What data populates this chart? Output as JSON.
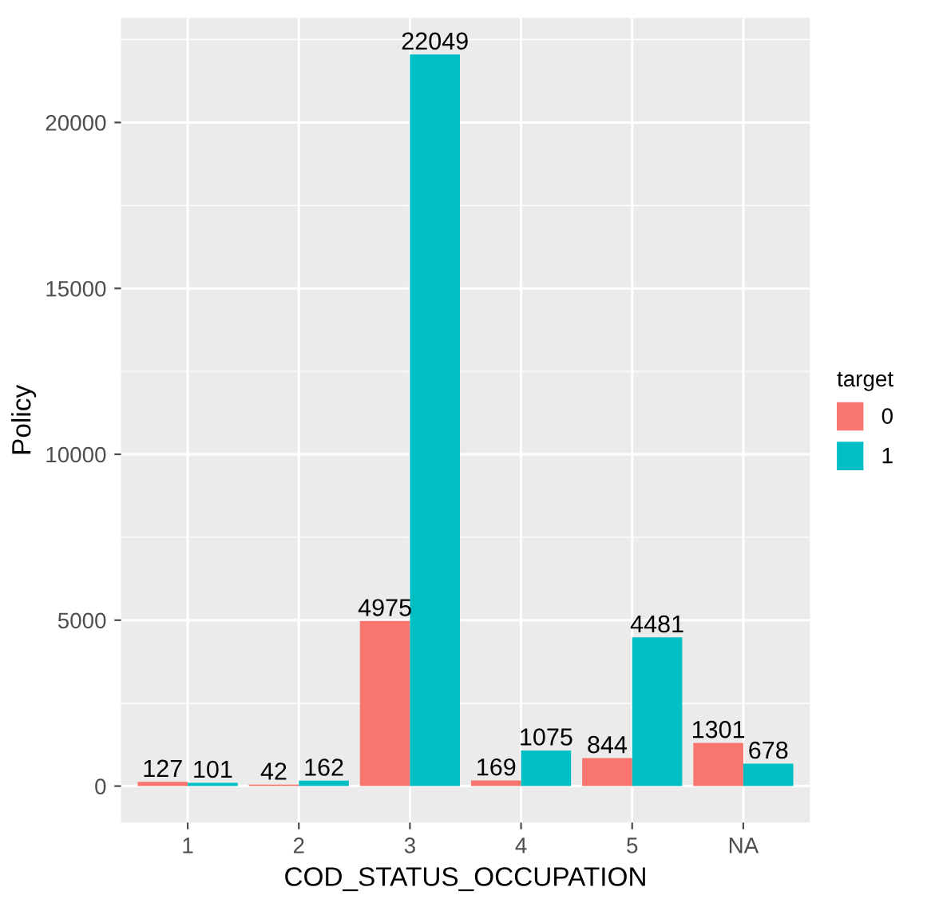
{
  "chart_data": {
    "type": "bar",
    "xlabel": "COD_STATUS_OCCUPATION",
    "ylabel": "Policy",
    "legend_title": "target",
    "categories": [
      "1",
      "2",
      "3",
      "4",
      "5",
      "NA"
    ],
    "series": [
      {
        "name": "0",
        "color": "#f8766d",
        "values": [
          127,
          42,
          4975,
          169,
          844,
          1301
        ]
      },
      {
        "name": "1",
        "color": "#00bfc4",
        "values": [
          101,
          162,
          22049,
          1075,
          4481,
          678
        ]
      }
    ],
    "ylim": [
      -1100,
      23150
    ],
    "yticks": [
      0,
      5000,
      10000,
      15000,
      20000
    ],
    "grid": true,
    "legend": "right",
    "data_labels": true
  }
}
